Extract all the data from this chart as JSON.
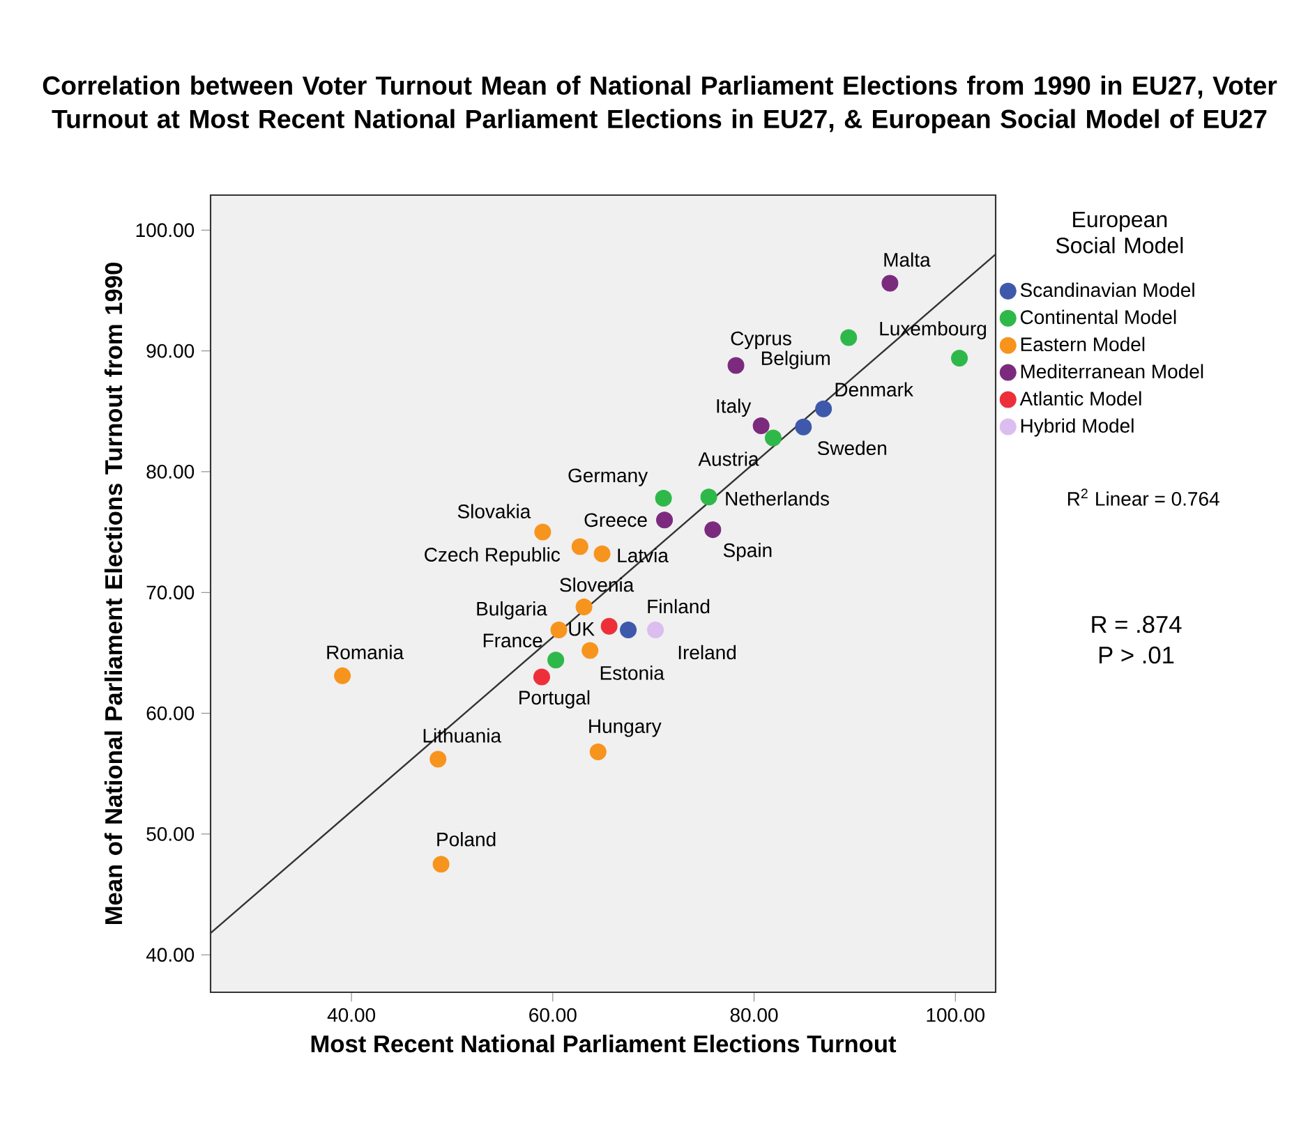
{
  "chart_data": {
    "type": "scatter",
    "title": "Correlation between Voter Turnout Mean of National Parliament Elections from 1990 in EU27, Voter Turnout at Most Recent National Parliament Elections in EU27, & European Social Model of EU27",
    "xlabel": "Most Recent National Parliament Elections Turnout",
    "ylabel": "Mean of National Parliament Elections Turnout from 1990",
    "legend_title": "European Social Model",
    "legend": "top right",
    "marker": "circle",
    "xlim": [
      26,
      104
    ],
    "ylim": [
      36.9,
      102.9
    ],
    "xticks": [
      {
        "value": 40,
        "label": "40.00"
      },
      {
        "value": 60,
        "label": "60.00"
      },
      {
        "value": 80,
        "label": "80.00"
      },
      {
        "value": 100,
        "label": "100.00"
      }
    ],
    "yticks": [
      {
        "value": 40,
        "label": "40.00"
      },
      {
        "value": 50,
        "label": "50.00"
      },
      {
        "value": 60,
        "label": "60.00"
      },
      {
        "value": 70,
        "label": "70.00"
      },
      {
        "value": 80,
        "label": "80.00"
      },
      {
        "value": 90,
        "label": "90.00"
      },
      {
        "value": 100,
        "label": "100.00"
      }
    ],
    "series": [
      {
        "name": "Scandinavian Model",
        "color": "#3e58ac",
        "x": [
          86.9,
          84.9,
          67.5
        ],
        "values": [
          85.2,
          83.7,
          66.9
        ]
      },
      {
        "name": "Continental Model",
        "color": "#2fb84a",
        "x": [
          89.4,
          100.4,
          81.9,
          71.0,
          75.5,
          60.3
        ],
        "values": [
          91.1,
          89.4,
          82.8,
          77.8,
          77.9,
          64.4
        ]
      },
      {
        "name": "Eastern Model",
        "color": "#f7941d",
        "x": [
          59.0,
          62.7,
          64.9,
          63.1,
          60.6,
          63.7,
          39.1,
          48.6,
          64.5,
          48.9
        ],
        "values": [
          75.0,
          73.8,
          73.2,
          68.8,
          66.9,
          65.2,
          63.1,
          56.2,
          56.8,
          47.5
        ]
      },
      {
        "name": "Mediterranean Model",
        "color": "#7b2a7e",
        "x": [
          93.5,
          78.2,
          80.7,
          71.1,
          75.9
        ],
        "values": [
          95.6,
          88.8,
          83.8,
          76.0,
          75.2
        ]
      },
      {
        "name": "Atlantic Model",
        "color": "#ed2f3a",
        "x": [
          65.6,
          58.9
        ],
        "values": [
          67.2,
          63.0
        ]
      },
      {
        "name": "Hybrid Model",
        "color": "#dcbdf0",
        "x": [
          70.2
        ],
        "values": [
          66.9
        ]
      },
      {
        "type": "line",
        "marker": "none",
        "color": "#333333",
        "x": [
          26,
          104
        ],
        "values": [
          41.8,
          98.0
        ]
      }
    ],
    "annotations": [
      {
        "text": "Malta",
        "x": 93.5,
        "y": 95.6
      },
      {
        "text": "Belgium",
        "x": 89.4,
        "y": 91.1
      },
      {
        "text": "Luxembourg",
        "x": 100.4,
        "y": 89.4
      },
      {
        "text": "Cyprus",
        "x": 78.2,
        "y": 88.8
      },
      {
        "text": "Denmark",
        "x": 86.9,
        "y": 85.2
      },
      {
        "text": "Sweden",
        "x": 84.9,
        "y": 83.7
      },
      {
        "text": "Italy",
        "x": 80.7,
        "y": 83.8
      },
      {
        "text": "Austria",
        "x": 81.9,
        "y": 82.8
      },
      {
        "text": "Germany",
        "x": 71.0,
        "y": 77.8
      },
      {
        "text": "Netherlands",
        "x": 75.5,
        "y": 77.9
      },
      {
        "text": "Greece",
        "x": 71.1,
        "y": 76.0
      },
      {
        "text": "Spain",
        "x": 75.9,
        "y": 75.2
      },
      {
        "text": "Slovakia",
        "x": 59.0,
        "y": 75.0
      },
      {
        "text": "Czech Republic",
        "x": 62.7,
        "y": 73.8
      },
      {
        "text": "Latvia",
        "x": 64.9,
        "y": 73.2
      },
      {
        "text": "Slovenia",
        "x": 63.1,
        "y": 68.8
      },
      {
        "text": "Bulgaria",
        "x": 60.6,
        "y": 66.9
      },
      {
        "text": "UK",
        "x": 65.6,
        "y": 67.2
      },
      {
        "text": "Finland",
        "x": 67.5,
        "y": 66.9
      },
      {
        "text": "Ireland",
        "x": 70.2,
        "y": 66.9
      },
      {
        "text": "Estonia",
        "x": 63.7,
        "y": 65.2
      },
      {
        "text": "France",
        "x": 60.3,
        "y": 64.4
      },
      {
        "text": "Portugal",
        "x": 58.9,
        "y": 63.0
      },
      {
        "text": "Romania",
        "x": 39.1,
        "y": 63.1
      },
      {
        "text": "Lithuania",
        "x": 48.6,
        "y": 56.2
      },
      {
        "text": "Hungary",
        "x": 64.5,
        "y": 56.8
      },
      {
        "text": "Poland",
        "x": 48.9,
        "y": 47.5
      },
      "R$^{2}$ Linear = 0.764",
      "R = .874",
      "P > .01"
    ]
  }
}
